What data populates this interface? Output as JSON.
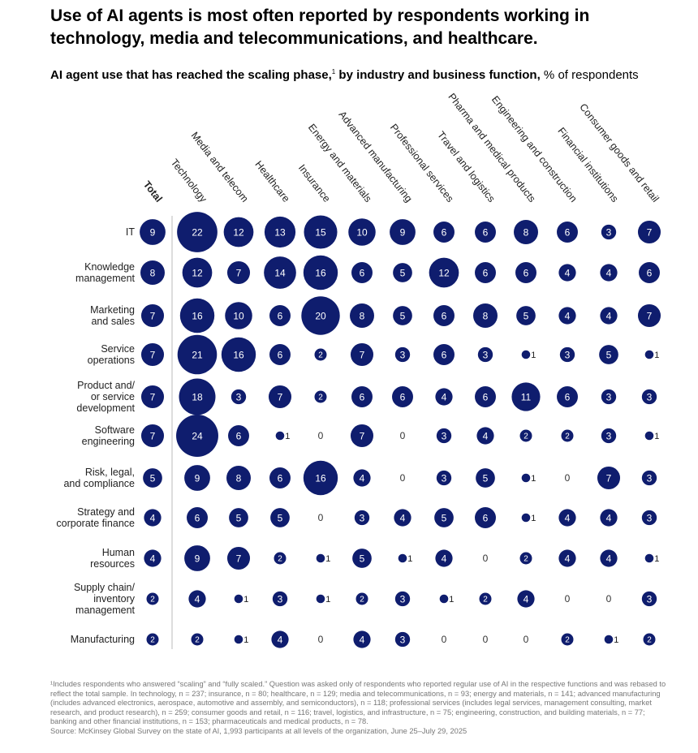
{
  "title": "Use of AI agents is most often reported by respondents working in technology, media and telecommunications, and healthcare.",
  "subtitle_bold": "AI agent use that has reached the scaling phase,",
  "subtitle_sup": "1",
  "subtitle_bold2": " by industry and business function,",
  "subtitle_unit": " % of respondents",
  "footnote": "¹Includes respondents who answered “scaling” and “fully scaled.” Question was asked only of respondents who reported regular use of AI in the respective functions and was rebased to reflect the total sample. In technology, n = 237; insurance, n = 80; healthcare, n = 129; media and telecommunications, n = 93; energy and materials, n = 141; advanced manufacturing (includes advanced electronics, aerospace, automotive and assembly, and semiconductors), n = 118; professional services (includes legal services, management consulting, market research, and product research), n = 259; consumer goods and retail, n = 116; travel, logistics, and infrastructure, n = 75; engineering, construction, and building materials, n = 77; banking and other financial institutions, n = 153; pharmaceuticals and medical products, n = 78.",
  "source": "Source: McKinsey Global Survey on the state of AI, 1,993 participants at all levels of the organization, June 25–July 29, 2025",
  "chart_data": {
    "type": "heatmap",
    "encoding": "bubble size",
    "color": "#0f1d6e",
    "columns": [
      "Total",
      "Technology",
      "Media and telecom",
      "Healthcare",
      "Insurance",
      "Energy and materials",
      "Advanced manufacturing",
      "Professional services",
      "Travel and logistics",
      "Pharma and medical products",
      "Engineering and construction",
      "Financial institutions",
      "Consumer goods and retail"
    ],
    "rows": [
      {
        "label": [
          "IT"
        ],
        "values": [
          9,
          22,
          12,
          13,
          15,
          10,
          9,
          6,
          6,
          8,
          6,
          3,
          7
        ]
      },
      {
        "label": [
          "Knowledge",
          "management"
        ],
        "values": [
          8,
          12,
          7,
          14,
          16,
          6,
          5,
          12,
          6,
          6,
          4,
          4,
          6
        ]
      },
      {
        "label": [
          "Marketing",
          "and sales"
        ],
        "values": [
          7,
          16,
          10,
          6,
          20,
          8,
          5,
          6,
          8,
          5,
          4,
          4,
          7
        ]
      },
      {
        "label": [
          "Service",
          "operations"
        ],
        "values": [
          7,
          21,
          16,
          6,
          2,
          7,
          3,
          6,
          3,
          1,
          3,
          5,
          1
        ]
      },
      {
        "label": [
          "Product and/",
          "or service",
          "development"
        ],
        "values": [
          7,
          18,
          3,
          7,
          2,
          6,
          6,
          4,
          6,
          11,
          6,
          3,
          3
        ]
      },
      {
        "label": [
          "Software",
          "engineering"
        ],
        "values": [
          7,
          24,
          6,
          1,
          0,
          7,
          0,
          3,
          4,
          2,
          2,
          3,
          1
        ]
      },
      {
        "label": [
          "Risk, legal,",
          "and compliance"
        ],
        "values": [
          5,
          9,
          8,
          6,
          16,
          4,
          0,
          3,
          5,
          1,
          0,
          7,
          3
        ]
      },
      {
        "label": [
          "Strategy and",
          "corporate finance"
        ],
        "values": [
          4,
          6,
          5,
          5,
          0,
          3,
          4,
          5,
          6,
          1,
          4,
          4,
          3
        ]
      },
      {
        "label": [
          "Human",
          "resources"
        ],
        "values": [
          4,
          9,
          7,
          2,
          1,
          5,
          1,
          4,
          0,
          2,
          4,
          4,
          1
        ]
      },
      {
        "label": [
          "Supply chain/",
          "inventory",
          "management"
        ],
        "values": [
          2,
          4,
          1,
          3,
          1,
          2,
          3,
          1,
          2,
          4,
          0,
          0,
          3
        ]
      },
      {
        "label": [
          "Manufacturing"
        ],
        "values": [
          2,
          2,
          1,
          4,
          0,
          4,
          3,
          0,
          0,
          0,
          2,
          1,
          2
        ]
      }
    ]
  }
}
